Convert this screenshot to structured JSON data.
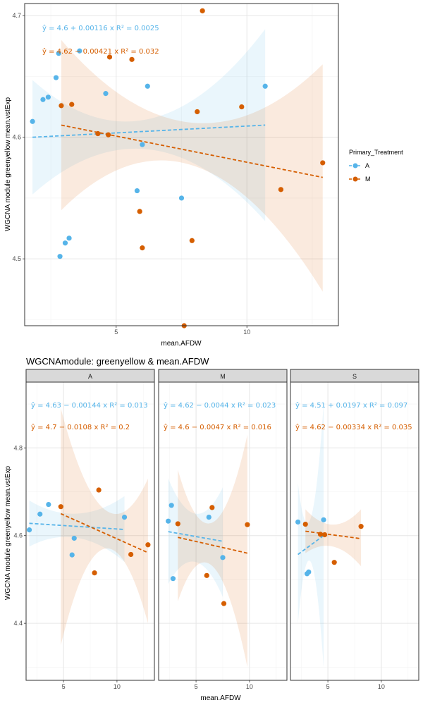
{
  "colors": {
    "A": "#56B4E9",
    "M": "#D55E00",
    "panel_border": "#333333",
    "grid": "#ebebeb",
    "strip_fill": "#d9d9d9"
  },
  "legend": {
    "title": "Primary_Treatment",
    "items": [
      "A",
      "M"
    ]
  },
  "chart_data": [
    {
      "type": "scatter",
      "xlabel": "mean.AFDW",
      "ylabel": "WGCNA module greenyellow mean.vstExp",
      "xlim": [
        1.5,
        13.5
      ],
      "ylim": [
        4.445,
        4.71
      ],
      "xticks": [
        5,
        10
      ],
      "yticks": [
        4.5,
        4.6,
        4.7
      ],
      "equations": [
        {
          "series": "A",
          "text": "ŷ = 4.6 + 0.00116 x   R² = 0.0025"
        },
        {
          "series": "M",
          "text": "ŷ = 4.62 − 0.00421 x   R² = 0.032"
        }
      ],
      "series": [
        {
          "name": "A",
          "points": [
            [
              1.8,
              4.613
            ],
            [
              2.2,
              4.631
            ],
            [
              2.4,
              4.633
            ],
            [
              2.7,
              4.649
            ],
            [
              2.8,
              4.669
            ],
            [
              2.85,
              4.502
            ],
            [
              3.05,
              4.513
            ],
            [
              3.2,
              4.517
            ],
            [
              3.6,
              4.671
            ],
            [
              4.6,
              4.636
            ],
            [
              5.8,
              4.556
            ],
            [
              6.0,
              4.594
            ],
            [
              6.2,
              4.642
            ],
            [
              7.5,
              4.55
            ],
            [
              10.7,
              4.642
            ]
          ],
          "fit": {
            "x0": 1.8,
            "x1": 10.7,
            "y0": 4.6,
            "y1": 4.61
          },
          "band": {
            "lo0": 4.553,
            "hi0": 4.647,
            "lom": 4.59,
            "him": 4.615,
            "lo1": 4.531,
            "hi1": 4.689
          }
        },
        {
          "name": "M",
          "points": [
            [
              2.9,
              4.626
            ],
            [
              3.3,
              4.627
            ],
            [
              4.3,
              4.603
            ],
            [
              4.7,
              4.602
            ],
            [
              4.75,
              4.666
            ],
            [
              5.6,
              4.664
            ],
            [
              5.9,
              4.539
            ],
            [
              6.0,
              4.509
            ],
            [
              7.6,
              4.445
            ],
            [
              7.9,
              4.515
            ],
            [
              8.1,
              4.621
            ],
            [
              8.3,
              4.704
            ],
            [
              9.8,
              4.625
            ],
            [
              11.3,
              4.557
            ],
            [
              12.9,
              4.579
            ]
          ],
          "fit": {
            "x0": 2.9,
            "x1": 12.9,
            "y0": 4.61,
            "y1": 4.567
          },
          "band": {
            "lo0": 4.54,
            "hi0": 4.68,
            "lom": 4.577,
            "him": 4.612,
            "lo1": 4.473,
            "hi1": 4.66
          }
        }
      ]
    },
    {
      "type": "scatter",
      "title": "WGCNAmodule: greenyellow & mean.AFDW",
      "xlabel": "mean.AFDW",
      "ylabel": "WGCNA module greenyellow mean.vstExp",
      "xlim": [
        1.5,
        13.5
      ],
      "ylim": [
        4.27,
        4.95
      ],
      "xticks": [
        5,
        10
      ],
      "yticks": [
        4.4,
        4.6,
        4.8
      ],
      "facets": [
        {
          "label": "A",
          "equations": [
            {
              "series": "A",
              "text": "ŷ = 4.63 − 0.00144 x   R² = 0.013"
            },
            {
              "series": "M",
              "text": "ŷ = 4.7 − 0.0108 x   R² = 0.2"
            }
          ],
          "series": [
            {
              "name": "A",
              "points": [
                [
                  1.8,
                  4.613
                ],
                [
                  2.8,
                  4.649
                ],
                [
                  3.6,
                  4.671
                ],
                [
                  5.8,
                  4.556
                ],
                [
                  6.0,
                  4.594
                ],
                [
                  10.7,
                  4.642
                ]
              ],
              "fit": {
                "x0": 1.8,
                "x1": 10.7,
                "y0": 4.628,
                "y1": 4.614
              },
              "band": {
                "lo0": 4.575,
                "hi0": 4.68,
                "lom": 4.595,
                "him": 4.65,
                "lo1": 4.54,
                "hi1": 4.69
              }
            },
            {
              "name": "M",
              "points": [
                [
                  4.75,
                  4.666
                ],
                [
                  7.9,
                  4.515
                ],
                [
                  8.3,
                  4.704
                ],
                [
                  11.3,
                  4.557
                ],
                [
                  12.9,
                  4.579
                ]
              ],
              "fit": {
                "x0": 4.75,
                "x1": 12.9,
                "y0": 4.65,
                "y1": 4.561
              },
              "band": {
                "lo0": 4.35,
                "hi0": 4.89,
                "lom": 4.57,
                "him": 4.66,
                "lo1": 4.4,
                "hi1": 4.73
              }
            }
          ]
        },
        {
          "label": "M",
          "equations": [
            {
              "series": "A",
              "text": "ŷ = 4.62 − 0.0044 x   R² = 0.023"
            },
            {
              "series": "M",
              "text": "ŷ = 4.6 − 0.0047 x   R² = 0.016"
            }
          ],
          "series": [
            {
              "name": "A",
              "points": [
                [
                  2.4,
                  4.633
                ],
                [
                  2.7,
                  4.669
                ],
                [
                  2.85,
                  4.502
                ],
                [
                  6.2,
                  4.642
                ],
                [
                  7.5,
                  4.55
                ]
              ],
              "fit": {
                "x0": 2.4,
                "x1": 7.5,
                "y0": 4.609,
                "y1": 4.587
              },
              "band": {
                "lo0": 4.49,
                "hi0": 4.73,
                "lom": 4.54,
                "him": 4.65,
                "lo1": 4.46,
                "hi1": 4.71
              }
            },
            {
              "name": "M",
              "points": [
                [
                  3.3,
                  4.627
                ],
                [
                  6.0,
                  4.509
                ],
                [
                  6.5,
                  4.664
                ],
                [
                  7.6,
                  4.445
                ],
                [
                  9.8,
                  4.625
                ]
              ],
              "fit": {
                "x0": 3.3,
                "x1": 9.8,
                "y0": 4.596,
                "y1": 4.56
              },
              "band": {
                "lo0": 4.45,
                "hi0": 4.75,
                "lom": 4.53,
                "him": 4.63,
                "lo1": 4.3,
                "hi1": 4.83
              }
            }
          ]
        },
        {
          "label": "S",
          "equations": [
            {
              "series": "A",
              "text": "ŷ = 4.51 + 0.0197 x   R² = 0.097"
            },
            {
              "series": "M",
              "text": "ŷ = 4.62 − 0.00334 x   R² = 0.035"
            }
          ],
          "series": [
            {
              "name": "A",
              "points": [
                [
                  2.2,
                  4.631
                ],
                [
                  3.05,
                  4.513
                ],
                [
                  3.2,
                  4.517
                ],
                [
                  4.6,
                  4.636
                ]
              ],
              "fit": {
                "x0": 2.2,
                "x1": 4.6,
                "y0": 4.557,
                "y1": 4.6
              },
              "band": {
                "lo0": 4.4,
                "hi0": 4.72,
                "lom": 4.54,
                "him": 4.64,
                "lo1": 4.3,
                "hi1": 4.9
              }
            },
            {
              "name": "M",
              "points": [
                [
                  2.9,
                  4.626
                ],
                [
                  4.3,
                  4.603
                ],
                [
                  4.7,
                  4.602
                ],
                [
                  5.6,
                  4.539
                ],
                [
                  8.1,
                  4.621
                ]
              ],
              "fit": {
                "x0": 2.9,
                "x1": 8.1,
                "y0": 4.61,
                "y1": 4.593
              },
              "band": {
                "lo0": 4.56,
                "hi0": 4.66,
                "lom": 4.575,
                "him": 4.625,
                "lo1": 4.53,
                "hi1": 4.66
              }
            }
          ]
        }
      ]
    }
  ]
}
